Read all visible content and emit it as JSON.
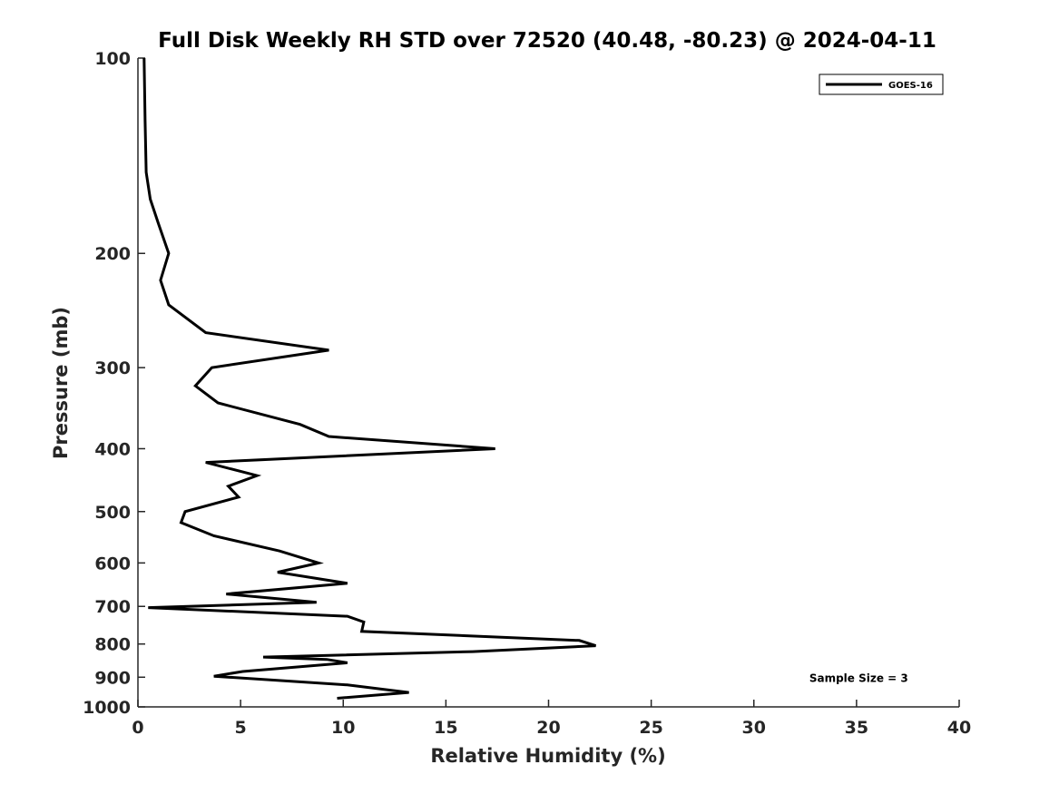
{
  "chart_data": {
    "type": "line",
    "title": "Full Disk Weekly RH STD over 72520 (40.48, -80.23) @ 2024-04-11",
    "xlabel": "Relative Humidity (%)",
    "ylabel": "Pressure (mb)",
    "xlim": [
      0,
      40
    ],
    "ylim": [
      100,
      1000
    ],
    "yscale": "log",
    "y_reversed": true,
    "x_ticks": [
      "0",
      "5",
      "10",
      "15",
      "20",
      "25",
      "30",
      "35",
      "40"
    ],
    "y_ticks": [
      "100",
      "200",
      "300",
      "400",
      "500",
      "600",
      "700",
      "800",
      "900",
      "1000"
    ],
    "grid": false,
    "legend_position": "top-right",
    "series": [
      {
        "name": "GOES-16",
        "color": "#000000",
        "points": [
          [
            0.3,
            100
          ],
          [
            0.35,
            125
          ],
          [
            0.4,
            150
          ],
          [
            0.6,
            165
          ],
          [
            1.0,
            180
          ],
          [
            1.5,
            200
          ],
          [
            1.1,
            220
          ],
          [
            1.5,
            240
          ],
          [
            3.3,
            265
          ],
          [
            9.3,
            282
          ],
          [
            3.6,
            300
          ],
          [
            2.8,
            320
          ],
          [
            3.9,
            340
          ],
          [
            7.9,
            367
          ],
          [
            9.3,
            383
          ],
          [
            17.4,
            400
          ],
          [
            3.3,
            420
          ],
          [
            5.8,
            440
          ],
          [
            4.4,
            457
          ],
          [
            4.9,
            475
          ],
          [
            2.3,
            500
          ],
          [
            2.1,
            520
          ],
          [
            3.7,
            545
          ],
          [
            6.9,
            575
          ],
          [
            8.8,
            600
          ],
          [
            6.8,
            620
          ],
          [
            10.2,
            645
          ],
          [
            4.3,
            670
          ],
          [
            8.7,
            690
          ],
          [
            0.5,
            703
          ],
          [
            10.2,
            725
          ],
          [
            11.0,
            740
          ],
          [
            10.9,
            765
          ],
          [
            21.5,
            790
          ],
          [
            22.3,
            805
          ],
          [
            16.3,
            822
          ],
          [
            6.1,
            838
          ],
          [
            9.2,
            845
          ],
          [
            10.2,
            855
          ],
          [
            5.1,
            882
          ],
          [
            3.7,
            897
          ],
          [
            10.2,
            925
          ],
          [
            13.2,
            950
          ],
          [
            9.7,
            970
          ]
        ]
      }
    ],
    "annotations": [
      {
        "text": "Sample Size = 3",
        "x": 32.7,
        "y": 900
      }
    ]
  }
}
